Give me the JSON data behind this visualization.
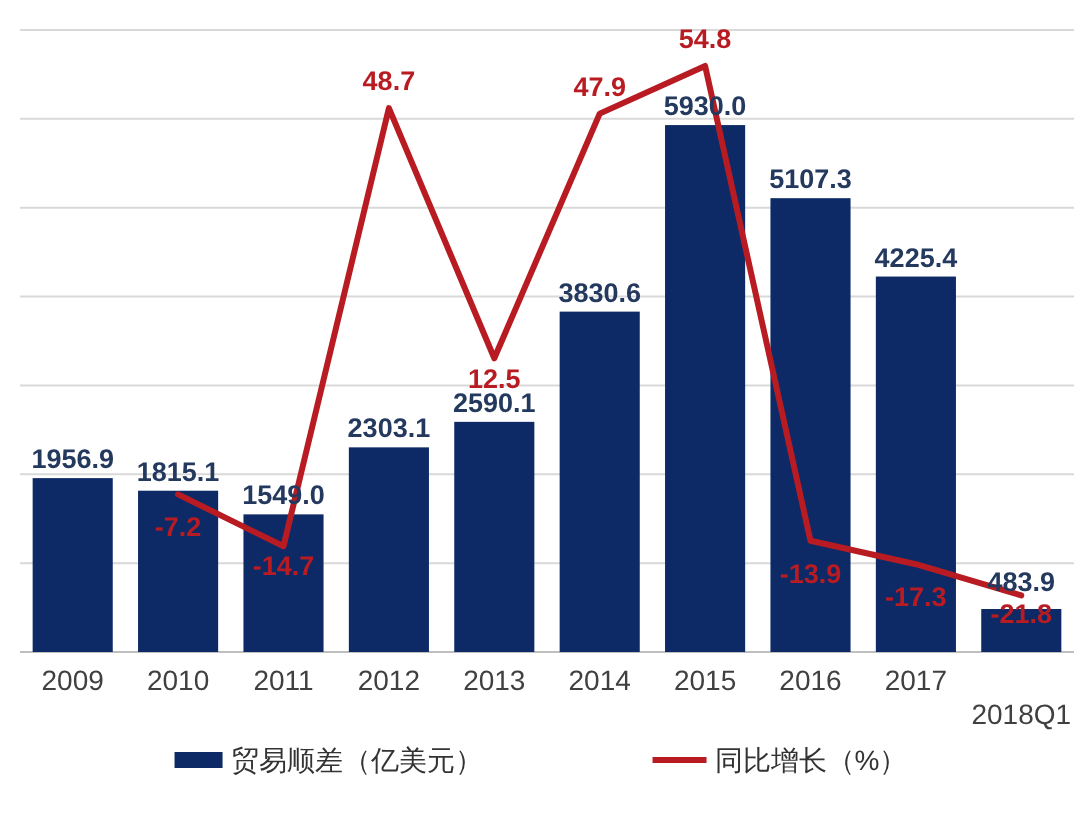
{
  "chart_data": {
    "type": "bar",
    "categories": [
      "2009",
      "2010",
      "2011",
      "2012",
      "2013",
      "2014",
      "2015",
      "2016",
      "2017",
      "2018Q1"
    ],
    "series": [
      {
        "name": "贸易顺差（亿美元）",
        "type": "bar",
        "color": "#0e2a66",
        "values": [
          1956.9,
          1815.1,
          1549.0,
          2303.1,
          2590.1,
          3830.6,
          5930.0,
          5107.3,
          4225.4,
          483.9
        ],
        "value_labels": [
          "1956.9",
          "1815.1",
          "1549.0",
          "2303.1",
          "2590.1",
          "3830.6",
          "5930.0",
          "5107.3",
          "4225.4",
          "483.9"
        ]
      },
      {
        "name": "同比增长（%）",
        "type": "line",
        "axis": "y2",
        "color": "#b81c22",
        "values": [
          null,
          -7.2,
          -14.7,
          48.7,
          12.5,
          47.9,
          54.8,
          -13.9,
          -17.3,
          -21.8
        ],
        "value_labels": [
          null,
          "-7.2",
          "-14.7",
          "48.7",
          "12.5",
          "47.9",
          "54.8",
          "-13.9",
          "-17.3",
          "-21.8"
        ]
      }
    ],
    "grid": "y",
    "legend": "bottom",
    "tick_labels": "x",
    "line_style": "solid"
  }
}
